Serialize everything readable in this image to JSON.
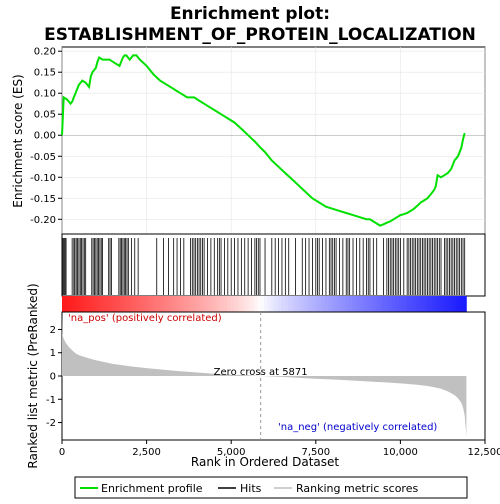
{
  "chart_data": {
    "type": "line",
    "title_line1": "Enrichment plot:",
    "title_line2": "ESTABLISHMENT_OF_PROTEIN_LOCALIZATION",
    "top_panel": {
      "ylabel": "Enrichment score (ES)",
      "ylim": [
        -0.235,
        0.21
      ],
      "yticks": [
        -0.2,
        -0.15,
        -0.1,
        -0.05,
        0.0,
        0.05,
        0.1,
        0.15,
        0.2
      ],
      "ytick_labels": [
        "-0.20",
        "-0.15",
        "-0.10",
        "-0.05",
        "0.00",
        "0.05",
        "0.10",
        "0.15",
        "0.20"
      ],
      "series": [
        {
          "name": "Enrichment profile",
          "color": "#00e000",
          "x": [
            0,
            50,
            150,
            250,
            300,
            350,
            400,
            450,
            500,
            550,
            600,
            700,
            800,
            850,
            900,
            950,
            1000,
            1050,
            1100,
            1200,
            1300,
            1400,
            1500,
            1600,
            1700,
            1750,
            1800,
            1850,
            1900,
            1950,
            2000,
            2100,
            2200,
            2300,
            2500,
            2700,
            2900,
            3100,
            3300,
            3500,
            3700,
            3800,
            3900,
            4000,
            4100,
            4200,
            4300,
            4500,
            4700,
            4900,
            5100,
            5300,
            5500,
            5700,
            5871,
            6000,
            6200,
            6400,
            6600,
            6800,
            7000,
            7200,
            7400,
            7600,
            7800,
            8000,
            8200,
            8400,
            8600,
            8800,
            9000,
            9100,
            9200,
            9300,
            9400,
            9500,
            9600,
            9700,
            9800,
            9900,
            10000,
            10100,
            10200,
            10300,
            10400,
            10500,
            10600,
            10700,
            10800,
            10900,
            11000,
            11050,
            11100,
            11200,
            11300,
            11400,
            11500,
            11600,
            11700,
            11800,
            11850,
            11900
          ],
          "y": [
            0.0,
            0.09,
            0.085,
            0.075,
            0.08,
            0.09,
            0.1,
            0.11,
            0.12,
            0.125,
            0.13,
            0.125,
            0.115,
            0.14,
            0.15,
            0.155,
            0.16,
            0.175,
            0.185,
            0.18,
            0.18,
            0.18,
            0.175,
            0.17,
            0.165,
            0.175,
            0.185,
            0.19,
            0.19,
            0.185,
            0.18,
            0.19,
            0.19,
            0.18,
            0.165,
            0.145,
            0.13,
            0.12,
            0.11,
            0.1,
            0.09,
            0.09,
            0.09,
            0.085,
            0.08,
            0.075,
            0.07,
            0.06,
            0.05,
            0.04,
            0.03,
            0.015,
            0.0,
            -0.015,
            -0.03,
            -0.04,
            -0.06,
            -0.075,
            -0.09,
            -0.105,
            -0.12,
            -0.135,
            -0.15,
            -0.16,
            -0.17,
            -0.175,
            -0.18,
            -0.185,
            -0.19,
            -0.195,
            -0.2,
            -0.2,
            -0.205,
            -0.21,
            -0.215,
            -0.212,
            -0.208,
            -0.205,
            -0.2,
            -0.195,
            -0.19,
            -0.188,
            -0.185,
            -0.18,
            -0.175,
            -0.168,
            -0.16,
            -0.155,
            -0.15,
            -0.14,
            -0.13,
            -0.12,
            -0.095,
            -0.1,
            -0.095,
            -0.09,
            -0.08,
            -0.06,
            -0.05,
            -0.03,
            -0.01,
            0.005
          ]
        }
      ]
    },
    "hits_panel": {
      "series_name": "Hits",
      "color": "#000000",
      "positions": [
        30,
        60,
        90,
        120,
        300,
        350,
        380,
        420,
        460,
        500,
        540,
        580,
        620,
        660,
        700,
        880,
        920,
        960,
        1000,
        1040,
        1080,
        1120,
        1160,
        1200,
        1380,
        1420,
        1460,
        1680,
        1720,
        1760,
        1800,
        1840,
        1880,
        1920,
        1960,
        2050,
        2150,
        2250,
        2800,
        3000,
        3150,
        3300,
        3400,
        3500,
        3600,
        3800,
        3850,
        3900,
        3950,
        4000,
        4050,
        4100,
        4150,
        4200,
        4300,
        4400,
        4500,
        4600,
        4650,
        4700,
        4800,
        4900,
        5000,
        5100,
        5200,
        5300,
        5400,
        5500,
        5600,
        5700,
        5750,
        5800,
        5850,
        6000,
        6200,
        6300,
        6400,
        6500,
        6600,
        6700,
        6900,
        7100,
        7200,
        7300,
        7400,
        7500,
        7550,
        7600,
        7700,
        7800,
        7900,
        7950,
        8000,
        8050,
        8100,
        8200,
        8300,
        8400,
        8450,
        8500,
        8600,
        8700,
        8800,
        8900,
        9000,
        9050,
        9100,
        9200,
        9300,
        9500,
        9600,
        9650,
        9700,
        9750,
        9800,
        9850,
        9900,
        9950,
        10000,
        10100,
        10200,
        10250,
        10300,
        10350,
        10400,
        10450,
        10500,
        10550,
        10600,
        10650,
        10700,
        10750,
        10800,
        10850,
        10900,
        10950,
        11000,
        11050,
        11100,
        11150,
        11200,
        11300,
        11350,
        11400,
        11450,
        11500,
        11550,
        11600,
        11650,
        11700,
        11750,
        11800,
        11850,
        11900
      ]
    },
    "ranked_panel": {
      "ylabel": "Ranked list metric (PreRanked)",
      "series_name": "Ranking metric scores",
      "color": "#c0c0c0",
      "ylim": [
        -2.75,
        2.75
      ],
      "yticks": [
        -2,
        -1,
        0,
        1,
        2
      ],
      "ytick_labels": [
        "-2",
        "-1",
        "0",
        "1",
        "2"
      ],
      "x": [
        0,
        10,
        50,
        100,
        200,
        300,
        400,
        500,
        700,
        1000,
        1500,
        2000,
        2500,
        3000,
        3500,
        4000,
        4500,
        5000,
        5500,
        5871,
        6500,
        7000,
        7500,
        8000,
        8500,
        9000,
        9500,
        10000,
        10500,
        10800,
        11000,
        11200,
        11400,
        11600,
        11700,
        11800,
        11850,
        11900,
        11950
      ],
      "y": [
        2.7,
        1.8,
        1.6,
        1.45,
        1.25,
        1.1,
        0.98,
        0.9,
        0.8,
        0.68,
        0.52,
        0.42,
        0.34,
        0.27,
        0.2,
        0.15,
        0.1,
        0.06,
        0.03,
        0.0,
        -0.04,
        -0.08,
        -0.12,
        -0.15,
        -0.19,
        -0.23,
        -0.27,
        -0.32,
        -0.38,
        -0.43,
        -0.48,
        -0.55,
        -0.66,
        -0.82,
        -0.95,
        -1.15,
        -1.35,
        -1.7,
        -2.6
      ]
    },
    "xlabel": "Rank in Ordered Dataset",
    "xlim": [
      0,
      12500
    ],
    "xticks": [
      0,
      2500,
      5000,
      7500,
      10000,
      12500
    ],
    "xtick_labels": [
      "0",
      "2,500",
      "5,000",
      "7,500",
      "10,000",
      "12,500"
    ],
    "n_genes": 11950,
    "zero_cross": 5871,
    "zero_cross_label": "Zero cross at 5871",
    "pos_label": "'na_pos' (positively correlated)",
    "neg_label": "'na_neg' (negatively correlated)",
    "pos_label_color": "#cc0000",
    "neg_label_color": "#0000cc",
    "legend": {
      "placement": "bottom",
      "items": [
        {
          "label": "Enrichment profile",
          "color": "#00e000"
        },
        {
          "label": "Hits",
          "color": "#000000"
        },
        {
          "label": "Ranking metric scores",
          "color": "#c0c0c0"
        }
      ]
    }
  }
}
